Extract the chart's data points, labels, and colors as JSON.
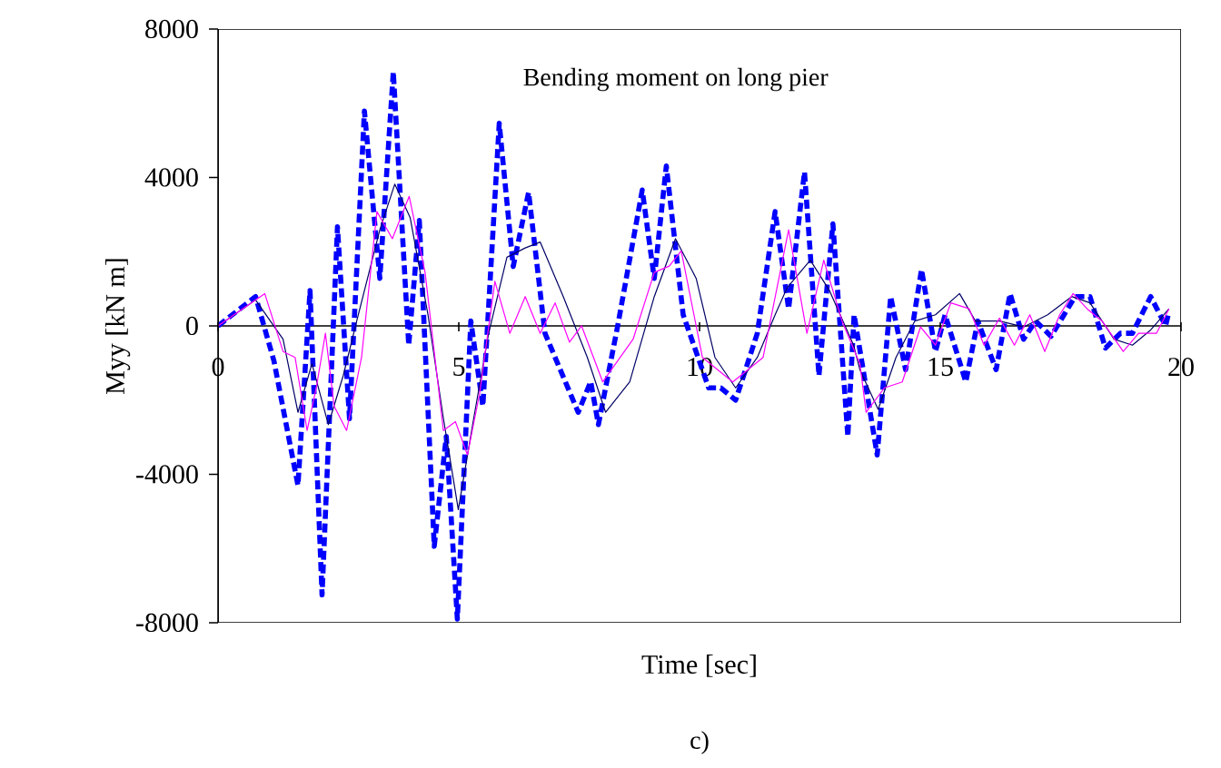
{
  "chart_data": {
    "type": "line",
    "xlabel": "Time [sec]",
    "ylabel": "Myy [kN m]",
    "annotations": [
      "Bending moment on long pier",
      "c)"
    ],
    "xlim": [
      0,
      20
    ],
    "ylim": [
      -8000,
      8000
    ],
    "xticks": [
      0,
      5,
      10,
      15,
      20
    ],
    "yticks": [
      -8000,
      -4000,
      0,
      4000,
      8000
    ],
    "grid": false,
    "series": [
      {
        "color": "#0000ff",
        "line_style": "dashed",
        "x": [
          0,
          0.78,
          1.16,
          1.66,
          1.91,
          2.16,
          2.48,
          2.73,
          3.04,
          3.36,
          3.64,
          3.96,
          4.18,
          4.49,
          4.74,
          4.97,
          5.25,
          5.5,
          5.84,
          6.13,
          6.45,
          6.79,
          7.48,
          7.74,
          7.9,
          8.3,
          8.81,
          9.06,
          9.31,
          9.66,
          10.19,
          10.44,
          10.75,
          11.2,
          11.57,
          11.85,
          12.18,
          12.48,
          12.77,
          13.08,
          13.21,
          13.69,
          13.97,
          14.28,
          14.61,
          14.9,
          15.1,
          15.53,
          15.78,
          16.16,
          16.45,
          16.73,
          16.98,
          17.3,
          17.8,
          18.11,
          18.43,
          18.74,
          18.99,
          19.37,
          19.68,
          19.75
        ],
        "values": [
          0,
          790,
          -940,
          -4300,
          950,
          -7250,
          2670,
          -2500,
          5790,
          1280,
          6850,
          -520,
          2840,
          -5940,
          -2980,
          -7900,
          130,
          -2160,
          5460,
          1600,
          3600,
          -200,
          -2330,
          -1500,
          -2660,
          0,
          3660,
          1280,
          4310,
          300,
          -1670,
          -1670,
          -2000,
          -200,
          3080,
          460,
          4150,
          -1340,
          2750,
          -2980,
          300,
          -3480,
          790,
          -1180,
          1520,
          -690,
          300,
          -1510,
          130,
          -1180,
          870,
          -360,
          130,
          -280,
          790,
          790,
          -600,
          -200,
          -200,
          790,
          0,
          380
        ]
      },
      {
        "color": "#000066",
        "line_style": "solid",
        "x": [
          0,
          0.78,
          1.35,
          1.66,
          1.95,
          2.29,
          2.6,
          2.88,
          3.36,
          3.67,
          3.99,
          4.36,
          4.68,
          4.99,
          5.31,
          5.62,
          6.0,
          6.38,
          6.69,
          7.17,
          7.67,
          8.05,
          8.55,
          9.06,
          9.5,
          9.93,
          10.32,
          10.75,
          11.2,
          11.57,
          11.82,
          12.3,
          12.7,
          13.2,
          13.33,
          13.71,
          14.08,
          14.47,
          14.9,
          15.4,
          15.73,
          16.23,
          16.73,
          17.23,
          17.73,
          18.11,
          18.61,
          18.99,
          19.37,
          19.75
        ],
        "values": [
          0,
          700,
          -360,
          -2330,
          -1020,
          -2660,
          -1340,
          130,
          2590,
          3820,
          2920,
          300,
          -2490,
          -4950,
          -2490,
          -200,
          1850,
          2100,
          2260,
          790,
          -850,
          -2330,
          -1510,
          790,
          2350,
          1280,
          -850,
          -1670,
          -850,
          300,
          1030,
          1770,
          950,
          -520,
          -1180,
          -2250,
          -850,
          130,
          300,
          870,
          130,
          130,
          -30,
          300,
          790,
          620,
          -360,
          -520,
          -110,
          460
        ]
      },
      {
        "color": "#ff00ff",
        "line_style": "solid",
        "x": [
          0,
          0.97,
          1.35,
          1.6,
          1.85,
          2.04,
          2.23,
          2.41,
          2.67,
          2.98,
          3.3,
          3.62,
          3.97,
          4.3,
          4.68,
          4.93,
          5.18,
          5.43,
          5.75,
          6.06,
          6.38,
          6.69,
          7.0,
          7.3,
          7.55,
          7.99,
          8.62,
          9.06,
          9.37,
          9.62,
          10.06,
          10.69,
          11.32,
          11.85,
          12.23,
          12.58,
          12.96,
          13.33,
          13.46,
          13.84,
          14.21,
          14.59,
          14.9,
          15.22,
          15.6,
          15.91,
          16.23,
          16.54,
          16.86,
          17.17,
          17.48,
          17.76,
          18.05,
          18.36,
          18.8,
          19.12,
          19.49,
          19.75
        ],
        "values": [
          0,
          870,
          -690,
          -850,
          -2820,
          -1670,
          -200,
          -2160,
          -2820,
          -850,
          3080,
          2350,
          3490,
          1440,
          -2820,
          -2580,
          -3480,
          -1840,
          1200,
          -200,
          790,
          -200,
          620,
          -440,
          0,
          -1510,
          -360,
          1440,
          1610,
          2020,
          -850,
          -1510,
          -850,
          2590,
          -200,
          1770,
          130,
          -1020,
          -2330,
          -1670,
          -1510,
          -30,
          -520,
          620,
          460,
          -520,
          210,
          -520,
          300,
          -690,
          300,
          870,
          460,
          130,
          -690,
          -200,
          -200,
          460
        ]
      }
    ]
  }
}
